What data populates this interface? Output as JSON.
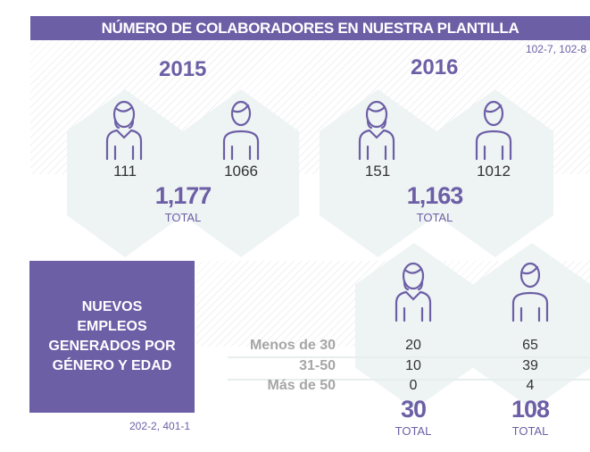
{
  "header": {
    "title": "NÚMERO DE COLABORADORES EN NUESTRA PLANTILLA",
    "ref": "102-7, 102-8"
  },
  "years": [
    {
      "year": "2015",
      "women": "111",
      "men": "1066",
      "total": "1,177",
      "total_label": "TOTAL"
    },
    {
      "year": "2016",
      "women": "151",
      "men": "1012",
      "total": "1,163",
      "total_label": "TOTAL"
    }
  ],
  "new_jobs": {
    "title": "NUEVOS EMPLEOS GENERADOS POR GÉNERO Y EDAD",
    "ref": "202-2, 401-1",
    "rows": [
      {
        "label": "Menos de 30",
        "women": "20",
        "men": "65"
      },
      {
        "label": "31-50",
        "women": "10",
        "men": "39"
      },
      {
        "label": "Más de 50",
        "women": "0",
        "men": "4"
      }
    ],
    "women_total": "30",
    "men_total": "108",
    "total_label": "TOTAL"
  },
  "colors": {
    "accent": "#6c5fa6",
    "hex": "#eef3f3"
  }
}
